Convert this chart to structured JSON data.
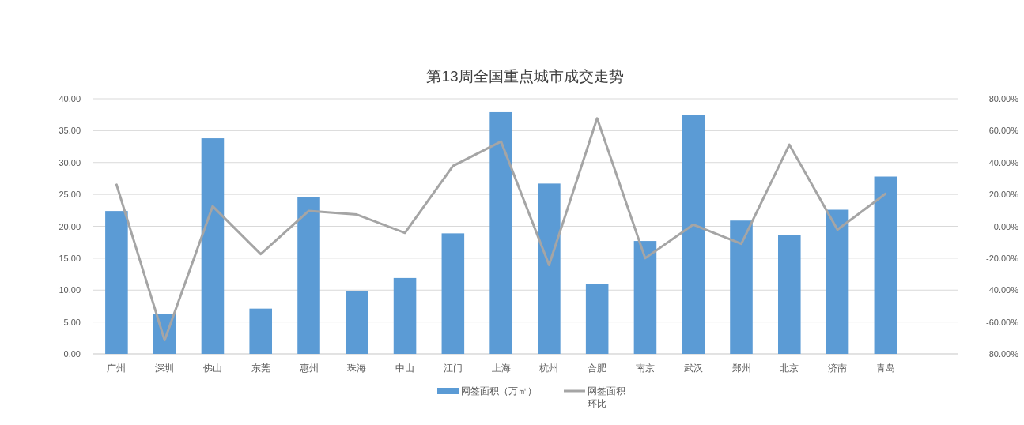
{
  "chart_data": {
    "type": "bar",
    "title": "第13周全国重点城市成交走势",
    "categories": [
      "广州",
      "深圳",
      "佛山",
      "东莞",
      "惠州",
      "珠海",
      "中山",
      "江门",
      "上海",
      "杭州",
      "合肥",
      "南京",
      "武汉",
      "郑州",
      "北京",
      "济南",
      "青岛",
      null
    ],
    "series": [
      {
        "name": "网签面积（万㎡）",
        "color": "#5b9bd5",
        "values": [
          22.4,
          6.2,
          33.8,
          7.1,
          24.6,
          9.8,
          11.9,
          18.9,
          37.9,
          26.7,
          11.0,
          17.7,
          37.5,
          20.9,
          18.6,
          22.6,
          27.8,
          null
        ]
      },
      {
        "name": "网签面积环比",
        "type": "line",
        "axis": "y2",
        "color": "#a5a5a5",
        "values": [
          26.1,
          -71.4,
          12.6,
          -17.4,
          9.7,
          7.4,
          -4.1,
          37.8,
          53.2,
          -24.3,
          67.7,
          -20.0,
          1.1,
          -11.0,
          51.2,
          -2.1,
          20.4,
          null
        ]
      }
    ],
    "ylim": [
      0,
      40
    ],
    "yticks": [
      {
        "value": 0,
        "label": "0.00"
      },
      {
        "value": 5,
        "label": "5.00"
      },
      {
        "value": 10,
        "label": "10.00"
      },
      {
        "value": 15,
        "label": "15.00"
      },
      {
        "value": 20,
        "label": "20.00"
      },
      {
        "value": 25,
        "label": "25.00"
      },
      {
        "value": 30,
        "label": "30.00"
      },
      {
        "value": 35,
        "label": "35.00"
      },
      {
        "value": 40,
        "label": "40.00"
      }
    ],
    "y2lim": [
      -80,
      80
    ],
    "y2ticks": [
      {
        "value": -80,
        "label": "-80.00%"
      },
      {
        "value": -60,
        "label": "-60.00%"
      },
      {
        "value": -40,
        "label": "-40.00%"
      },
      {
        "value": -20,
        "label": "-20.00%"
      },
      {
        "value": 0,
        "label": "0.00%"
      },
      {
        "value": 20,
        "label": "20.00%"
      },
      {
        "value": 40,
        "label": "40.00%"
      },
      {
        "value": 60,
        "label": "60.00%"
      },
      {
        "value": 80,
        "label": "80.00%"
      }
    ],
    "grid": "y",
    "legend": "bottom",
    "marker": "none"
  }
}
